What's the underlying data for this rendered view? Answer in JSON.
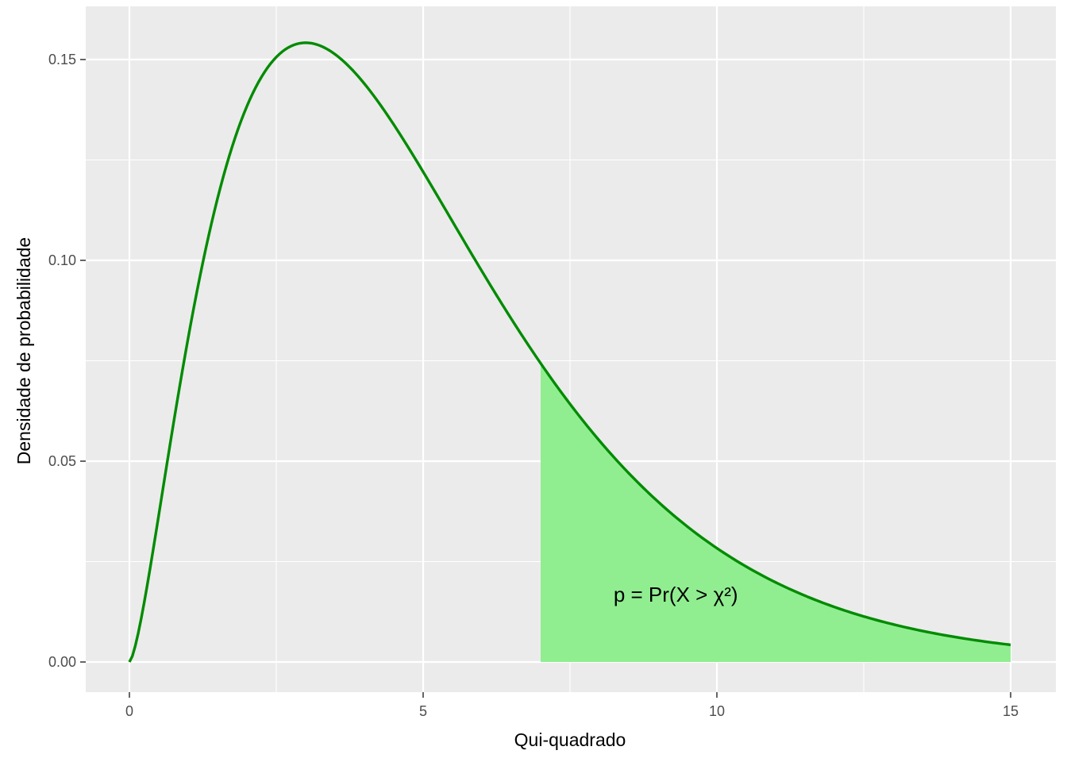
{
  "chart_data": {
    "type": "area",
    "xlabel": "Qui-quadrado",
    "ylabel": "Densidade de probabilidade",
    "xlim": [
      0,
      15
    ],
    "ylim": [
      0,
      0.16
    ],
    "x_ticks": [
      0,
      5,
      10,
      15
    ],
    "y_ticks": [
      0.0,
      0.05,
      0.1,
      0.15
    ],
    "x_tick_labels": [
      "0",
      "5",
      "10",
      "15"
    ],
    "y_tick_labels": [
      "0.00",
      "0.05",
      "0.10",
      "0.15"
    ],
    "grid": true,
    "series": [
      {
        "x": [
          0,
          0.25,
          0.5,
          0.75,
          1,
          1.5,
          2,
          2.5,
          3,
          3.5,
          4,
          5,
          6,
          7,
          8,
          9,
          10,
          11,
          12,
          13,
          14,
          15
        ],
        "y": [
          0,
          0.019,
          0.0512,
          0.0865,
          0.0902,
          0.1255,
          0.1353,
          0.1517,
          0.1542,
          0.1516,
          0.1473,
          0.122,
          0.0965,
          0.0738,
          0.055,
          0.0402,
          0.0285,
          0.02,
          0.0137,
          0.0095,
          0.0063,
          0.0041
        ],
        "color": "#008b00",
        "fill_from_x": 7,
        "fill_color": "#90ee90"
      }
    ],
    "annotation": {
      "text": "p = Pr(X > χ²)",
      "x": 9.3,
      "y": 0.015
    }
  },
  "colors": {
    "panel": "#ebebeb",
    "grid": "#ffffff",
    "line": "#008b00",
    "fill": "#90ee90"
  }
}
